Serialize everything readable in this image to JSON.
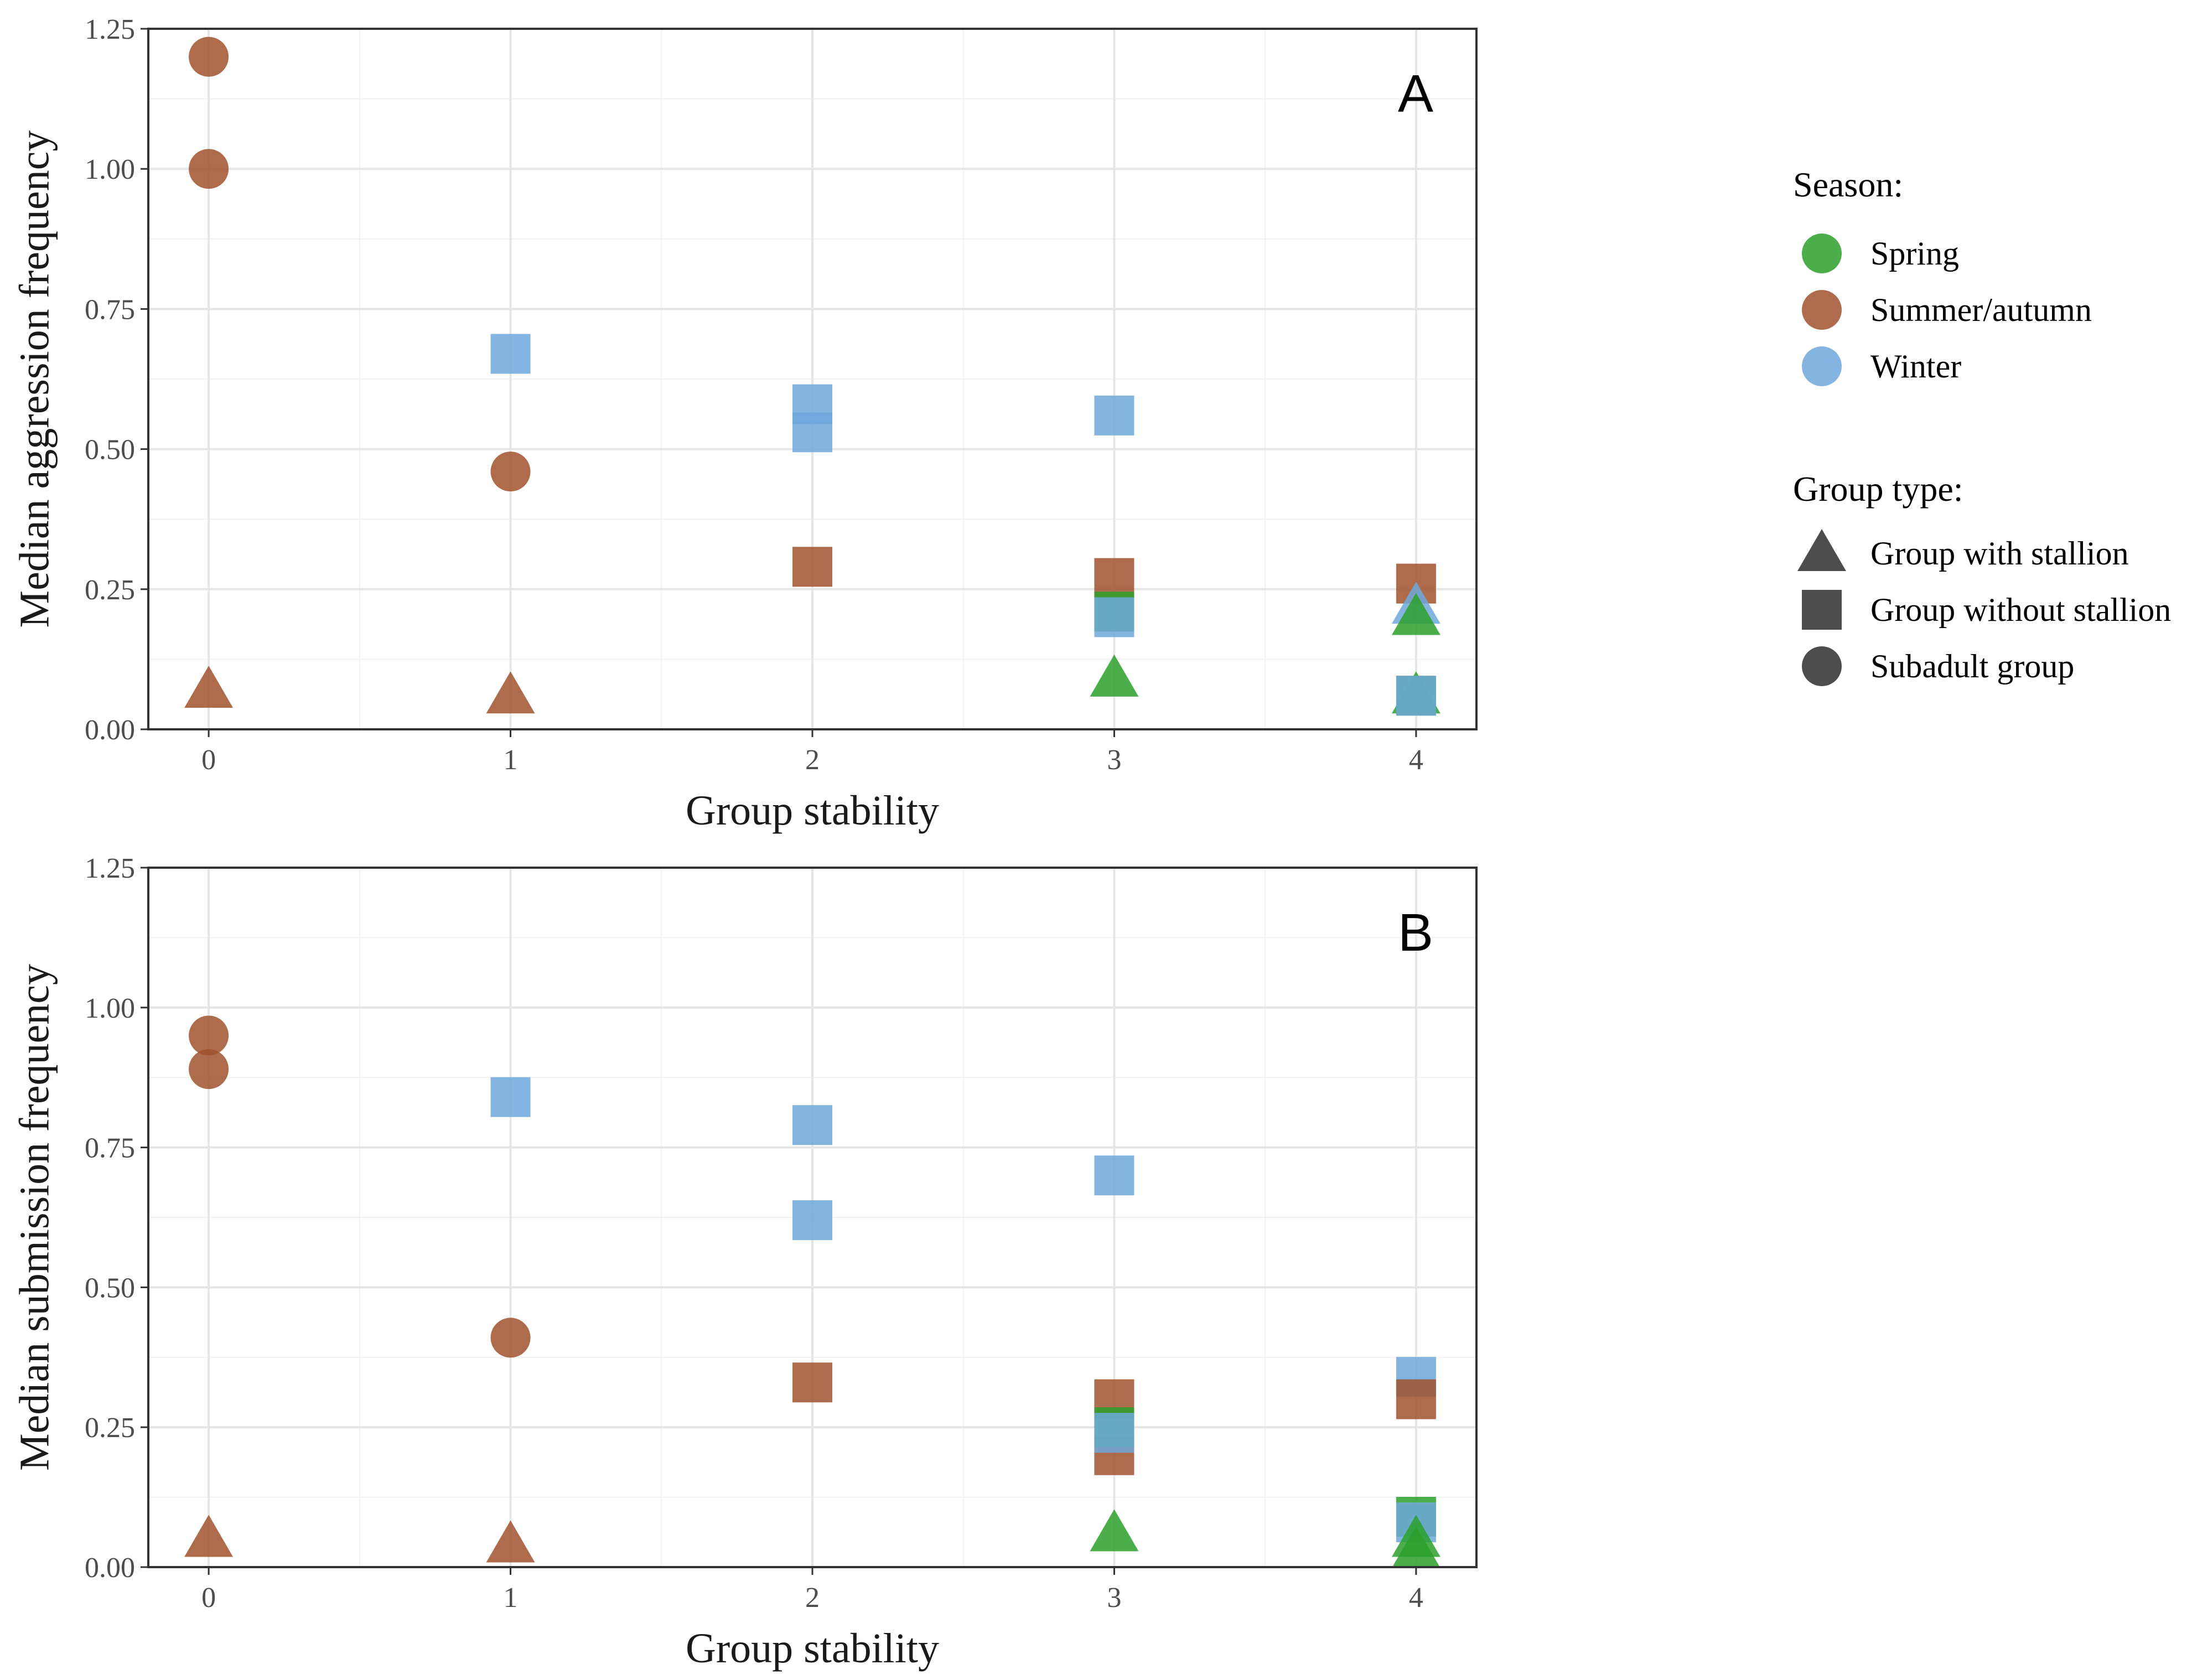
{
  "legend": {
    "season_title": "Season:",
    "season_items": [
      {
        "label": "Spring",
        "color": "#2ca02c"
      },
      {
        "label": "Summer/autumn",
        "color": "#a0522d"
      },
      {
        "label": "Winter",
        "color": "#6fa8dc"
      }
    ],
    "group_title": "Group type:",
    "group_items": [
      {
        "label": "Group with stallion",
        "shape": "triangle"
      },
      {
        "label": "Group without stallion",
        "shape": "square"
      },
      {
        "label": "Subadult group",
        "shape": "circle"
      }
    ]
  },
  "chart_data": [
    {
      "type": "scatter",
      "panel": "A",
      "xlabel": "Group stability",
      "ylabel": "Median aggression frequency",
      "xlim": [
        -0.2,
        4.2
      ],
      "ylim": [
        0,
        1.25
      ],
      "x_ticks": [
        "0",
        "1",
        "2",
        "3",
        "4"
      ],
      "y_ticks": [
        "0.00",
        "0.25",
        "0.50",
        "0.75",
        "1.00",
        "1.25"
      ],
      "points": [
        {
          "x": 0,
          "y": 1.2,
          "season": "Summer/autumn",
          "group": "Subadult group"
        },
        {
          "x": 0,
          "y": 1.0,
          "season": "Summer/autumn",
          "group": "Subadult group"
        },
        {
          "x": 0,
          "y": 0.07,
          "season": "Summer/autumn",
          "group": "Group with stallion"
        },
        {
          "x": 1,
          "y": 0.67,
          "season": "Winter",
          "group": "Group without stallion"
        },
        {
          "x": 1,
          "y": 0.46,
          "season": "Summer/autumn",
          "group": "Subadult group"
        },
        {
          "x": 1,
          "y": 0.06,
          "season": "Summer/autumn",
          "group": "Group with stallion"
        },
        {
          "x": 2,
          "y": 0.58,
          "season": "Winter",
          "group": "Group without stallion"
        },
        {
          "x": 2,
          "y": 0.53,
          "season": "Winter",
          "group": "Group without stallion"
        },
        {
          "x": 2,
          "y": 0.29,
          "season": "Summer/autumn",
          "group": "Group without stallion"
        },
        {
          "x": 3,
          "y": 0.56,
          "season": "Winter",
          "group": "Group without stallion"
        },
        {
          "x": 3,
          "y": 0.27,
          "season": "Summer/autumn",
          "group": "Group without stallion"
        },
        {
          "x": 3,
          "y": 0.21,
          "season": "Spring",
          "group": "Group without stallion"
        },
        {
          "x": 3,
          "y": 0.2,
          "season": "Winter",
          "group": "Group without stallion"
        },
        {
          "x": 3,
          "y": 0.09,
          "season": "Spring",
          "group": "Group with stallion"
        },
        {
          "x": 4,
          "y": 0.26,
          "season": "Summer/autumn",
          "group": "Group without stallion"
        },
        {
          "x": 4,
          "y": 0.22,
          "season": "Winter",
          "group": "Group with stallion"
        },
        {
          "x": 4,
          "y": 0.2,
          "season": "Spring",
          "group": "Group with stallion"
        },
        {
          "x": 4,
          "y": 0.06,
          "season": "Spring",
          "group": "Group with stallion"
        },
        {
          "x": 4,
          "y": 0.06,
          "season": "Spring",
          "group": "Group without stallion"
        },
        {
          "x": 4,
          "y": 0.06,
          "season": "Winter",
          "group": "Group without stallion"
        }
      ]
    },
    {
      "type": "scatter",
      "panel": "B",
      "xlabel": "Group stability",
      "ylabel": "Median submission frequency",
      "xlim": [
        -0.2,
        4.2
      ],
      "ylim": [
        0,
        1.25
      ],
      "x_ticks": [
        "0",
        "1",
        "2",
        "3",
        "4"
      ],
      "y_ticks": [
        "0.00",
        "0.25",
        "0.50",
        "0.75",
        "1.00",
        "1.25"
      ],
      "points": [
        {
          "x": 0,
          "y": 0.95,
          "season": "Summer/autumn",
          "group": "Subadult group"
        },
        {
          "x": 0,
          "y": 0.89,
          "season": "Summer/autumn",
          "group": "Subadult group"
        },
        {
          "x": 0,
          "y": 0.05,
          "season": "Summer/autumn",
          "group": "Group with stallion"
        },
        {
          "x": 1,
          "y": 0.84,
          "season": "Winter",
          "group": "Group without stallion"
        },
        {
          "x": 1,
          "y": 0.41,
          "season": "Summer/autumn",
          "group": "Subadult group"
        },
        {
          "x": 1,
          "y": 0.04,
          "season": "Summer/autumn",
          "group": "Group with stallion"
        },
        {
          "x": 2,
          "y": 0.79,
          "season": "Winter",
          "group": "Group without stallion"
        },
        {
          "x": 2,
          "y": 0.62,
          "season": "Winter",
          "group": "Group without stallion"
        },
        {
          "x": 2,
          "y": 0.33,
          "season": "Summer/autumn",
          "group": "Group without stallion"
        },
        {
          "x": 3,
          "y": 0.7,
          "season": "Winter",
          "group": "Group without stallion"
        },
        {
          "x": 3,
          "y": 0.3,
          "season": "Summer/autumn",
          "group": "Group without stallion"
        },
        {
          "x": 3,
          "y": 0.2,
          "season": "Summer/autumn",
          "group": "Group without stallion"
        },
        {
          "x": 3,
          "y": 0.25,
          "season": "Spring",
          "group": "Group without stallion"
        },
        {
          "x": 3,
          "y": 0.24,
          "season": "Winter",
          "group": "Group without stallion"
        },
        {
          "x": 3,
          "y": 0.06,
          "season": "Spring",
          "group": "Group with stallion"
        },
        {
          "x": 4,
          "y": 0.34,
          "season": "Winter",
          "group": "Group without stallion"
        },
        {
          "x": 4,
          "y": 0.3,
          "season": "Summer/autumn",
          "group": "Group without stallion"
        },
        {
          "x": 4,
          "y": 0.09,
          "season": "Spring",
          "group": "Group without stallion"
        },
        {
          "x": 4,
          "y": 0.08,
          "season": "Winter",
          "group": "Group without stallion"
        },
        {
          "x": 4,
          "y": 0.05,
          "season": "Spring",
          "group": "Group with stallion"
        },
        {
          "x": 4,
          "y": 0.03,
          "season": "Spring",
          "group": "Group with stallion"
        }
      ]
    }
  ]
}
